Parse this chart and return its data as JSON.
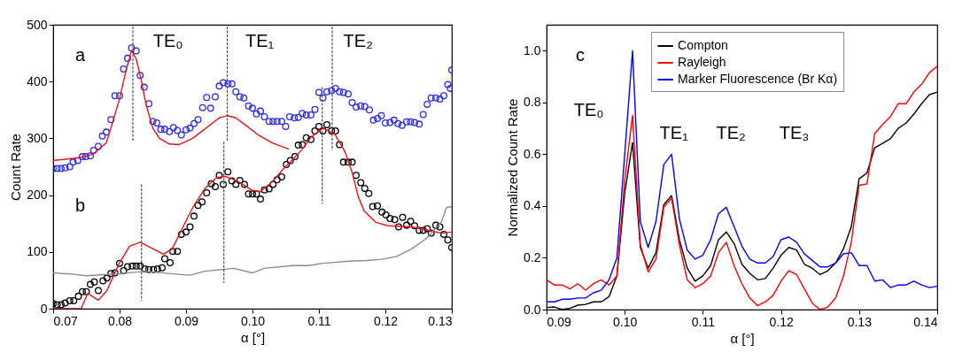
{
  "chart_data": [
    {
      "type": "scatter",
      "xlabel": "α [°]",
      "ylabel": "Count Rate",
      "xlim": [
        0.07,
        0.13
      ],
      "ylim": [
        0,
        500
      ],
      "xticks": [
        0.07,
        0.08,
        0.09,
        {
          "value": 0.1,
          "label": "0.10"
        },
        0.11,
        0.12,
        0.13
      ],
      "yticks": [
        0,
        100,
        200,
        300,
        400,
        500
      ],
      "grid": false,
      "series": [
        {
          "type": "scatter",
          "marker": "circle",
          "color": "#2b2bf0",
          "x": [
            0.07,
            0.0706,
            0.0712,
            0.0718,
            0.0725,
            0.073,
            0.0737,
            0.0744,
            0.0749,
            0.0756,
            0.0761,
            0.0768,
            0.0774,
            0.078,
            0.0787,
            0.0793,
            0.08,
            0.0806,
            0.0812,
            0.0818,
            0.0825,
            0.0831,
            0.0837,
            0.0844,
            0.085,
            0.0856,
            0.0862,
            0.0868,
            0.0875,
            0.0881,
            0.0887,
            0.0893,
            0.09,
            0.0906,
            0.0912,
            0.0918,
            0.0925,
            0.0931,
            0.0937,
            0.0944,
            0.095,
            0.0956,
            0.0963,
            0.0969,
            0.0975,
            0.0981,
            0.0987,
            0.0994,
            0.1,
            0.1006,
            0.1012,
            0.1018,
            0.1025,
            0.1031,
            0.1037,
            0.1044,
            0.105,
            0.1056,
            0.1063,
            0.1069,
            0.1075,
            0.1081,
            0.1088,
            0.1094,
            0.11,
            0.1106,
            0.1112,
            0.1119,
            0.1125,
            0.1131,
            0.1137,
            0.1144,
            0.115,
            0.1156,
            0.1163,
            0.1169,
            0.1176,
            0.1182,
            0.1188,
            0.1194,
            0.12,
            0.1207,
            0.1213,
            0.1219,
            0.1225,
            0.1232,
            0.1238,
            0.1244,
            0.1251,
            0.1257,
            0.1263,
            0.1269,
            0.1276,
            0.1282,
            0.1288,
            0.1294,
            0.1298,
            0.13
          ],
          "values": [
            247,
            247,
            247,
            248,
            250,
            258,
            261,
            268,
            268,
            269,
            279,
            286,
            304,
            311,
            333,
            375,
            375,
            422,
            441,
            459,
            454,
            411,
            390,
            361,
            330,
            327,
            316,
            316,
            312,
            319,
            314,
            306,
            315,
            318,
            326,
            333,
            354,
            372,
            353,
            373,
            392,
            398,
            396,
            396,
            382,
            373,
            371,
            357,
            353,
            343,
            348,
            338,
            330,
            330,
            330,
            330,
            321,
            338,
            336,
            337,
            344,
            341,
            341,
            351,
            381,
            371,
            382,
            384,
            388,
            382,
            381,
            378,
            363,
            355,
            357,
            356,
            350,
            332,
            335,
            340,
            327,
            328,
            332,
            326,
            323,
            329,
            329,
            328,
            325,
            342,
            360,
            371,
            371,
            369,
            375,
            395,
            388,
            420
          ]
        },
        {
          "type": "line",
          "line_style": "solid",
          "marker": "none",
          "color": "#e8141c",
          "x": [
            0.07,
            0.074,
            0.076,
            0.078,
            0.079,
            0.08,
            0.081,
            0.0818,
            0.0825,
            0.0832,
            0.084,
            0.085,
            0.086,
            0.0875,
            0.089,
            0.091,
            0.093,
            0.095,
            0.0962,
            0.0975,
            0.099,
            0.101,
            0.103,
            0.1055
          ],
          "values": [
            261,
            266,
            272,
            292,
            330,
            370,
            421,
            455,
            440,
            406,
            359,
            318,
            300,
            290,
            289,
            300,
            318,
            336,
            340,
            336,
            323,
            305,
            292,
            281
          ]
        },
        {
          "type": "scatter",
          "marker": "circle",
          "color": "#000000",
          "x": [
            0.07,
            0.0706,
            0.0712,
            0.0718,
            0.0725,
            0.0731,
            0.0738,
            0.0744,
            0.075,
            0.0756,
            0.0762,
            0.0768,
            0.0775,
            0.0781,
            0.0787,
            0.0793,
            0.08,
            0.0806,
            0.0812,
            0.0819,
            0.0825,
            0.0831,
            0.0838,
            0.0844,
            0.0851,
            0.0857,
            0.0864,
            0.0868,
            0.0876,
            0.088,
            0.0887,
            0.0893,
            0.09,
            0.0906,
            0.0912,
            0.0918,
            0.0924,
            0.0931,
            0.0938,
            0.0944,
            0.095,
            0.0956,
            0.0963,
            0.0969,
            0.0975,
            0.0981,
            0.0988,
            0.0994,
            0.1,
            0.1006,
            0.1012,
            0.1018,
            0.1025,
            0.1031,
            0.1037,
            0.1044,
            0.1051,
            0.1057,
            0.1064,
            0.1069,
            0.1075,
            0.1081,
            0.1088,
            0.1094,
            0.11,
            0.1106,
            0.1112,
            0.1119,
            0.1125,
            0.1131,
            0.1137,
            0.1144,
            0.115,
            0.1156,
            0.1163,
            0.1169,
            0.1175,
            0.1181,
            0.1188,
            0.1195,
            0.1201,
            0.1207,
            0.1214,
            0.122,
            0.1226,
            0.1232,
            0.1238,
            0.1244,
            0.1251,
            0.1257,
            0.1263,
            0.1269,
            0.1276,
            0.1282,
            0.1288,
            0.1294,
            0.13
          ],
          "values": [
            9,
            7,
            7,
            10,
            14,
            14,
            22,
            30,
            30,
            43,
            47,
            32,
            49,
            54,
            62,
            63,
            80,
            67,
            74,
            75,
            75,
            75,
            70,
            69,
            69,
            70,
            72,
            88,
            81,
            101,
            101,
            131,
            135,
            144,
            163,
            182,
            188,
            204,
            220,
            215,
            235,
            219,
            241,
            225,
            219,
            226,
            219,
            202,
            202,
            202,
            193,
            209,
            211,
            219,
            227,
            232,
            254,
            261,
            268,
            288,
            289,
            301,
            298,
            313,
            321,
            313,
            324,
            313,
            313,
            289,
            258,
            258,
            258,
            235,
            222,
            212,
            203,
            180,
            181,
            170,
            165,
            159,
            157,
            144,
            161,
            147,
            154,
            146,
            138,
            138,
            141,
            133,
            147,
            144,
            131,
            121,
            108
          ]
        },
        {
          "type": "line",
          "line_style": "solid",
          "marker": "none",
          "color": "#e8141c",
          "x": [
            0.07,
            0.0742,
            0.0752,
            0.0768,
            0.0781,
            0.0799,
            0.0815,
            0.0831,
            0.0848,
            0.0866,
            0.0879,
            0.0892,
            0.091,
            0.0928,
            0.0946,
            0.0959,
            0.0977,
            0.0999,
            0.1012,
            0.103,
            0.1048,
            0.1061,
            0.1075,
            0.1088,
            0.1106,
            0.1124,
            0.1137,
            0.1141,
            0.115,
            0.1159,
            0.1168,
            0.1186,
            0.1204,
            0.1239,
            0.1261,
            0.1284,
            0.13
          ],
          "values": [
            0,
            0,
            27,
            15,
            32,
            79,
            110,
            117,
            107,
            96,
            105,
            136,
            178,
            211,
            231,
            233,
            225,
            209,
            206,
            224,
            248,
            263,
            281,
            302,
            318,
            307,
            281,
            271,
            240,
            198,
            172,
            152,
            146,
            144,
            139,
            133,
            135
          ]
        },
        {
          "type": "line",
          "line_style": "solid",
          "marker": "none",
          "color": "#8c8c8c",
          "x": [
            0.07,
            0.0728,
            0.075,
            0.0775,
            0.0795,
            0.0839,
            0.0884,
            0.0906,
            0.0928,
            0.0972,
            0.1,
            0.1017,
            0.1061,
            0.1084,
            0.1106,
            0.115,
            0.1172,
            0.1195,
            0.1217,
            0.1239,
            0.1261,
            0.1284,
            0.1292,
            0.13
          ],
          "values": [
            63,
            61,
            58,
            60,
            61,
            66,
            61,
            59,
            66,
            71,
            63,
            71,
            76,
            76,
            80,
            84,
            85,
            87,
            92,
            105,
            123,
            152,
            178,
            180
          ]
        },
        {
          "type": "line",
          "line_style": "dotted",
          "marker": "none",
          "color": "#404040",
          "x": [
            0.082,
            0.082
          ],
          "values": [
            497,
            294
          ]
        },
        {
          "type": "line",
          "line_style": "dotted",
          "marker": "none",
          "color": "#404040",
          "x": [
            0.0962,
            0.0962
          ],
          "values": [
            497,
            294
          ]
        },
        {
          "type": "line",
          "line_style": "dotted",
          "marker": "none",
          "color": "#404040",
          "x": [
            0.112,
            0.112
          ],
          "values": [
            497,
            279
          ]
        },
        {
          "type": "line",
          "line_style": "dotted",
          "marker": "none",
          "color": "#404040",
          "x": [
            0.0833,
            0.0833
          ],
          "values": [
            219,
            14
          ]
        },
        {
          "type": "line",
          "line_style": "dotted",
          "marker": "none",
          "color": "#404040",
          "x": [
            0.0957,
            0.0957
          ],
          "values": [
            294,
            45
          ]
        },
        {
          "type": "line",
          "line_style": "dotted",
          "marker": "none",
          "color": "#404040",
          "x": [
            0.1105,
            0.1105
          ],
          "values": [
            390,
            185
          ]
        }
      ],
      "annotations": [
        "a",
        "TE₀",
        "TE₁",
        "TE₂",
        "b"
      ]
    },
    {
      "type": "line",
      "xlabel": "α [°]",
      "ylabel": "Normalized Count Rate",
      "xlim": [
        0.09,
        0.14
      ],
      "ylim": [
        0,
        1.1
      ],
      "xticks": [
        0.09,
        {
          "value": 0.1,
          "label": "0.10"
        },
        0.11,
        0.12,
        0.13,
        0.14
      ],
      "yticks": [
        {
          "value": 0,
          "label": "0.0"
        },
        0.2,
        0.4,
        0.6,
        0.8,
        {
          "value": 1,
          "label": "1.0"
        }
      ],
      "grid": false,
      "legend": "top",
      "marker": "none",
      "line_style": "solid",
      "x": [
        0.09,
        0.091,
        0.092,
        0.093,
        0.094,
        0.095,
        0.096,
        0.097,
        0.098,
        0.099,
        0.1,
        0.101,
        0.102,
        0.103,
        0.104,
        0.105,
        0.106,
        0.107,
        0.108,
        0.109,
        0.11,
        0.111,
        0.112,
        0.113,
        0.114,
        0.115,
        0.116,
        0.117,
        0.118,
        0.119,
        0.12,
        0.121,
        0.122,
        0.123,
        0.124,
        0.125,
        0.126,
        0.127,
        0.128,
        0.129,
        0.13,
        0.131,
        0.132,
        0.133,
        0.134,
        0.135,
        0.136,
        0.137,
        0.138,
        0.139,
        0.14
      ],
      "series": [
        {
          "name": "Compton",
          "color": "#000000",
          "values": [
            0.008,
            0.01,
            0.0,
            0.005,
            0.017,
            0.02,
            0.03,
            0.03,
            0.05,
            0.13,
            0.45,
            0.645,
            0.24,
            0.16,
            0.22,
            0.405,
            0.44,
            0.27,
            0.16,
            0.11,
            0.13,
            0.17,
            0.27,
            0.3,
            0.255,
            0.175,
            0.14,
            0.115,
            0.12,
            0.16,
            0.21,
            0.24,
            0.23,
            0.175,
            0.16,
            0.135,
            0.15,
            0.18,
            0.235,
            0.32,
            0.505,
            0.528,
            0.625,
            0.642,
            0.66,
            0.7,
            0.72,
            0.755,
            0.795,
            0.83,
            0.84
          ]
        },
        {
          "name": "Rayleigh",
          "color": "#ff0000",
          "values": [
            0.115,
            0.095,
            0.095,
            0.08,
            0.1,
            0.075,
            0.1,
            0.115,
            0.095,
            0.13,
            0.5,
            0.75,
            0.25,
            0.145,
            0.195,
            0.395,
            0.43,
            0.25,
            0.115,
            0.085,
            0.1,
            0.13,
            0.22,
            0.26,
            0.17,
            0.1,
            0.045,
            0.015,
            0.03,
            0.055,
            0.11,
            0.15,
            0.135,
            0.08,
            0.025,
            0.0,
            0.01,
            0.045,
            0.13,
            0.26,
            0.48,
            0.485,
            0.68,
            0.715,
            0.745,
            0.795,
            0.795,
            0.84,
            0.87,
            0.915,
            0.94
          ]
        },
        {
          "name": "Marker Fluorescence (Br Kα)",
          "color": "#0000ff",
          "values": [
            0.03,
            0.03,
            0.04,
            0.04,
            0.045,
            0.045,
            0.065,
            0.075,
            0.115,
            0.2,
            0.6,
            1.0,
            0.34,
            0.24,
            0.34,
            0.56,
            0.6,
            0.35,
            0.23,
            0.195,
            0.21,
            0.27,
            0.37,
            0.395,
            0.32,
            0.245,
            0.195,
            0.18,
            0.18,
            0.205,
            0.27,
            0.28,
            0.26,
            0.215,
            0.19,
            0.165,
            0.165,
            0.18,
            0.215,
            0.22,
            0.17,
            0.17,
            0.11,
            0.115,
            0.085,
            0.095,
            0.095,
            0.11,
            0.095,
            0.085,
            0.09
          ]
        }
      ],
      "annotations": [
        "c",
        "TE₀",
        "TE₁",
        "TE₂",
        "TE₃"
      ]
    }
  ]
}
